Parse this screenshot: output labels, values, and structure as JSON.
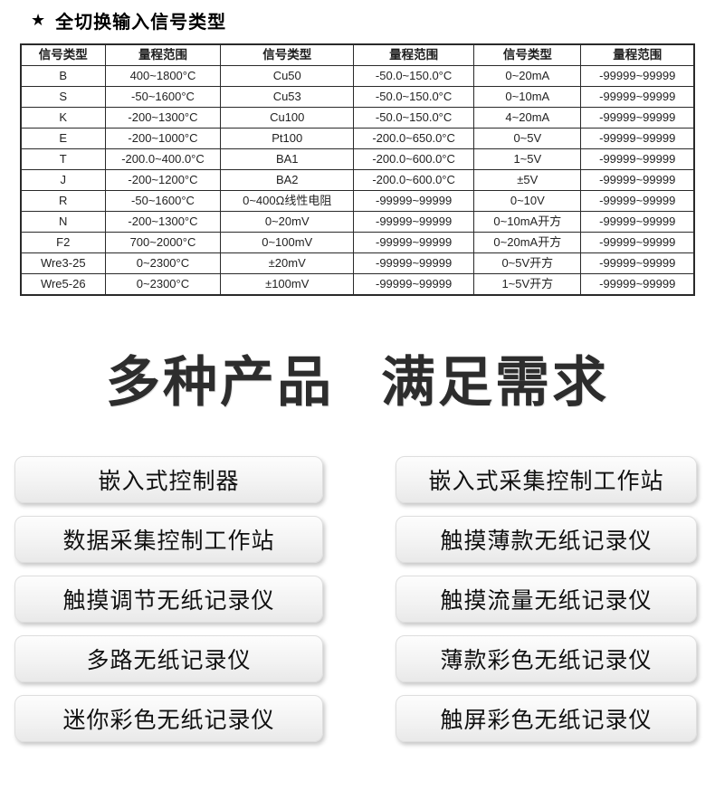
{
  "page": {
    "star": "★",
    "section_title": "全切换输入信号类型"
  },
  "signal_table": {
    "columns": [
      "信号类型",
      "量程范围",
      "信号类型",
      "量程范围",
      "信号类型",
      "量程范围"
    ],
    "rows": [
      [
        "B",
        "400~1800°C",
        "Cu50",
        "-50.0~150.0°C",
        "0~20mA",
        "-99999~99999"
      ],
      [
        "S",
        "-50~1600°C",
        "Cu53",
        "-50.0~150.0°C",
        "0~10mA",
        "-99999~99999"
      ],
      [
        "K",
        "-200~1300°C",
        "Cu100",
        "-50.0~150.0°C",
        "4~20mA",
        "-99999~99999"
      ],
      [
        "E",
        "-200~1000°C",
        "Pt100",
        "-200.0~650.0°C",
        "0~5V",
        "-99999~99999"
      ],
      [
        "T",
        "-200.0~400.0°C",
        "BA1",
        "-200.0~600.0°C",
        "1~5V",
        "-99999~99999"
      ],
      [
        "J",
        "-200~1200°C",
        "BA2",
        "-200.0~600.0°C",
        "±5V",
        "-99999~99999"
      ],
      [
        "R",
        "-50~1600°C",
        "0~400Ω线性电阻",
        "-99999~99999",
        "0~10V",
        "-99999~99999"
      ],
      [
        "N",
        "-200~1300°C",
        "0~20mV",
        "-99999~99999",
        "0~10mA开方",
        "-99999~99999"
      ],
      [
        "F2",
        "700~2000°C",
        "0~100mV",
        "-99999~99999",
        "0~20mA开方",
        "-99999~99999"
      ],
      [
        "Wre3-25",
        "0~2300°C",
        "±20mV",
        "-99999~99999",
        "0~5V开方",
        "-99999~99999"
      ],
      [
        "Wre5-26",
        "0~2300°C",
        "±100mV",
        "-99999~99999",
        "1~5V开方",
        "-99999~99999"
      ]
    ]
  },
  "headline": {
    "part1": "多种产品",
    "part2": "满足需求"
  },
  "product_buttons": {
    "left": [
      "嵌入式控制器",
      "数据采集控制工作站",
      "触摸调节无纸记录仪",
      "多路无纸记录仪",
      "迷你彩色无纸记录仪"
    ],
    "right": [
      "嵌入式采集控制工作站",
      "触摸薄款无纸记录仪",
      "触摸流量无纸记录仪",
      "薄款彩色无纸记录仪",
      "触屏彩色无纸记录仪"
    ]
  },
  "colors": {
    "text_primary": "#222222",
    "headline_text": "#2d2d2d",
    "table_border": "#2a2a2a",
    "button_bg_top": "#fdfdfd",
    "button_bg_bottom": "#e9e9e9",
    "button_shadow": "rgba(0,0,0,0.22)"
  }
}
